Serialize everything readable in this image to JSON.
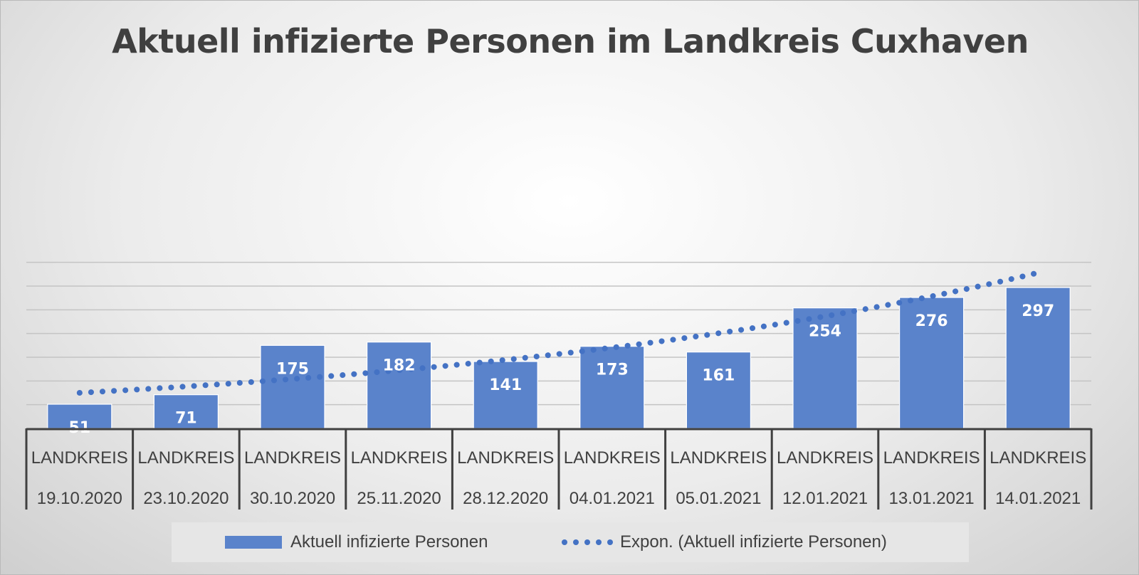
{
  "chart_data": {
    "type": "bar",
    "title": "Aktuell infizierte Personen im Landkreis Cuxhaven",
    "categories": [
      [
        "LANDKREIS",
        "19.10.2020"
      ],
      [
        "LANDKREIS",
        "23.10.2020"
      ],
      [
        "LANDKREIS",
        "30.10.2020"
      ],
      [
        "LANDKREIS",
        "25.11.2020"
      ],
      [
        "LANDKREIS",
        "28.12.2020"
      ],
      [
        "LANDKREIS",
        "04.01.2021"
      ],
      [
        "LANDKREIS",
        "05.01.2021"
      ],
      [
        "LANDKREIS",
        "12.01.2021"
      ],
      [
        "LANDKREIS",
        "13.01.2021"
      ],
      [
        "LANDKREIS",
        "14.01.2021"
      ]
    ],
    "series": [
      {
        "name": "Aktuell infizierte Personen",
        "values": [
          51,
          71,
          175,
          182,
          141,
          173,
          161,
          254,
          276,
          297
        ],
        "color": "#5a83cb"
      }
    ],
    "trendline": {
      "name": "Expon. (Aktuell infizierte Personen)",
      "type": "exponential",
      "start_value": 75,
      "end_value": 328,
      "color": "#4472c4"
    },
    "ylim": [
      0,
      350
    ],
    "grid": true,
    "legend": "bottom",
    "data_labels": true
  }
}
